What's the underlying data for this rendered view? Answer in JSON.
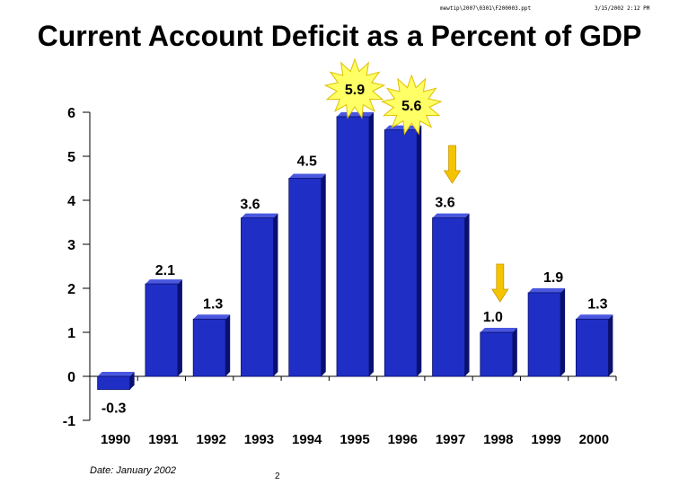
{
  "header": {
    "path": "mewtip\\2007\\0301\\F200003.ppt",
    "timestamp": "3/15/2002 2:12 PM"
  },
  "footer": {
    "date_note": "Date: January 2002",
    "page_number": "2"
  },
  "chart_data": {
    "type": "bar",
    "title": "Current Account Deficit as a Percent of GDP",
    "xlabel": "",
    "ylabel": "",
    "ylim": [
      -1,
      6
    ],
    "yticks": [
      -1,
      0,
      1,
      2,
      3,
      4,
      5,
      6
    ],
    "categories": [
      "1990",
      "1991",
      "1992",
      "1993",
      "1994",
      "1995",
      "1996",
      "1997",
      "1998",
      "1999",
      "2000"
    ],
    "values": [
      -0.3,
      2.1,
      1.3,
      3.6,
      4.5,
      5.9,
      5.6,
      3.6,
      1.0,
      1.9,
      1.3
    ],
    "data_labels": [
      "-0.3",
      "2.1",
      "1.3",
      "3.6",
      "4.5",
      "5.9",
      "5.6",
      "3.6",
      "1.0",
      "1.9",
      "1.3"
    ],
    "highlighted_bursts": [
      "1995",
      "1996"
    ],
    "down_arrows": [
      "1997",
      "1998"
    ],
    "colors": {
      "bar": "#1f2ec4",
      "bar_side": "#0a1070",
      "bar_top": "#4a58e0",
      "burst_fill": "#ffff66",
      "burst_stroke": "#e0c000",
      "arrow": "#f5c400"
    }
  }
}
